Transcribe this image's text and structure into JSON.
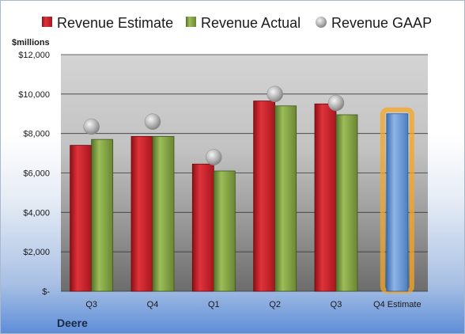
{
  "chart_data": {
    "type": "bar",
    "unit_label": "$millions",
    "company": "Deere",
    "categories": [
      "Q3",
      "Q4",
      "Q1",
      "Q2",
      "Q3",
      "Q4 Estimate"
    ],
    "series": [
      {
        "name": "Revenue Estimate",
        "type": "bar",
        "color": "#c8202a",
        "values": [
          7400,
          7850,
          6450,
          9650,
          9500,
          null
        ]
      },
      {
        "name": "Revenue Actual",
        "type": "bar",
        "color": "#7d9b3e",
        "values": [
          7700,
          7850,
          6100,
          9400,
          8950,
          9000
        ]
      },
      {
        "name": "Revenue GAAP",
        "type": "marker",
        "color": "#a8a8a8",
        "values": [
          8350,
          8600,
          6800,
          10000,
          9550,
          null
        ]
      }
    ],
    "highlight": {
      "category_index": 5,
      "bar_color": "#6b9bd6",
      "glow_color": "#f5a623"
    },
    "y_ticks": [
      "$-",
      "$2,000",
      "$4,000",
      "$6,000",
      "$8,000",
      "$10,000",
      "$12,000"
    ],
    "ylim": [
      0,
      12000
    ],
    "grid": true,
    "legend_position": "top"
  }
}
